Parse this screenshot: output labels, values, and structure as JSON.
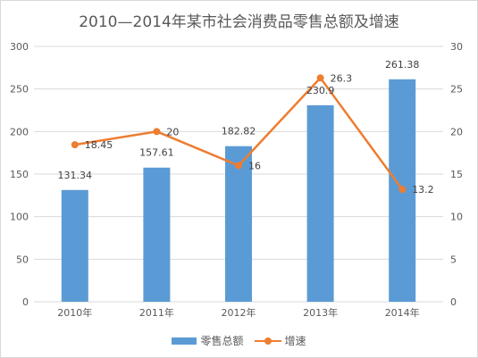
{
  "chart_data": {
    "type": "bar",
    "title": "2010—2014年某市社会消费品零售总额及增速",
    "categories": [
      "2010年",
      "2011年",
      "2012年",
      "2013年",
      "2014年"
    ],
    "series": [
      {
        "name": "零售总额",
        "type": "bar",
        "axis": "left",
        "values": [
          131.34,
          157.61,
          182.82,
          230.9,
          261.38
        ],
        "labels": [
          "131.34",
          "157.61",
          "182.82",
          "230.9",
          "261.38"
        ]
      },
      {
        "name": "增速",
        "type": "line",
        "axis": "right",
        "values": [
          18.45,
          20,
          16,
          26.3,
          13.2
        ],
        "labels": [
          "18.45",
          "20",
          "16",
          "26.3",
          "13.2"
        ]
      }
    ],
    "y_left": {
      "min": 0,
      "max": 300,
      "ticks": [
        "0",
        "50",
        "100",
        "150",
        "200",
        "250",
        "300"
      ]
    },
    "y_right": {
      "min": 0,
      "max": 30,
      "ticks": [
        "0",
        "5",
        "10",
        "15",
        "20",
        "25",
        "30"
      ]
    },
    "grid": true,
    "legend": "bottom",
    "colors": {
      "bar": "#5b9bd5",
      "line": "#ed7d31",
      "grid": "#d9d9d9",
      "text": "#595959"
    }
  }
}
